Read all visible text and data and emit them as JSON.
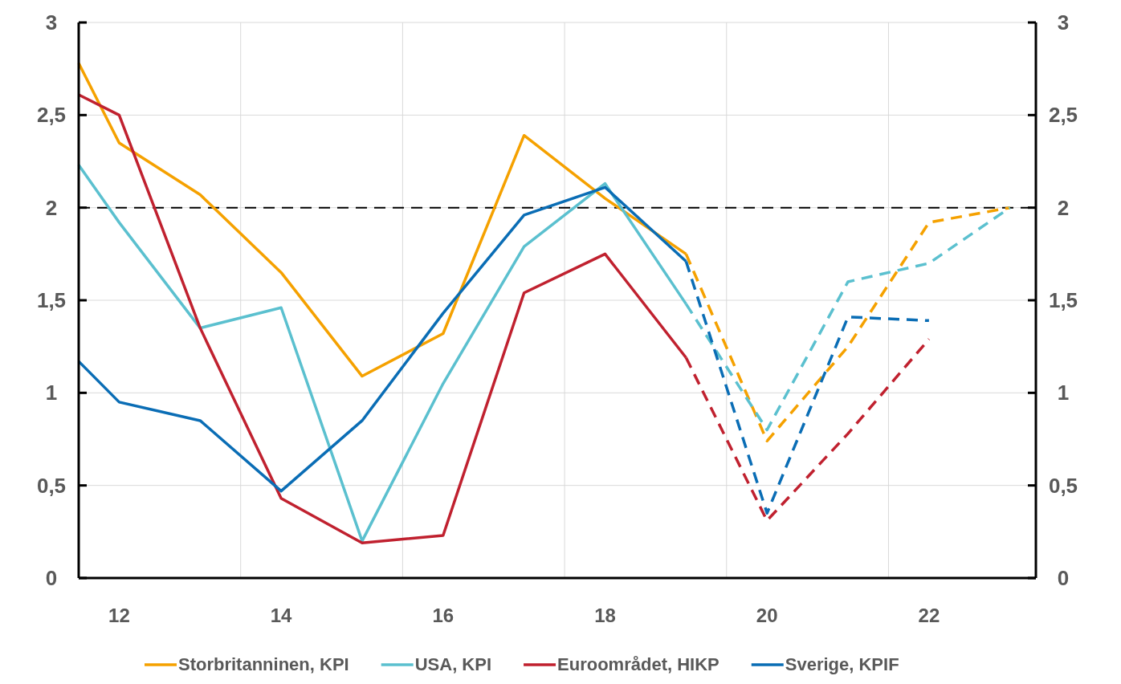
{
  "chart_data": {
    "type": "line",
    "x": [
      11.5,
      12,
      13,
      14,
      15,
      16,
      17,
      18,
      19
    ],
    "xlim": [
      11.5,
      23.32
    ],
    "xticks": [
      12,
      {
        "value": 13.5,
        "label": null
      },
      14,
      {
        "value": 15.5,
        "label": null
      },
      16,
      {
        "value": 17.5,
        "label": null
      },
      18,
      {
        "value": 19.5,
        "label": null
      },
      20,
      {
        "value": 21.5,
        "label": null
      },
      22
    ],
    "ylim": [
      0,
      3
    ],
    "yticks": [
      0,
      {
        "value": 0.5,
        "label": "0,5"
      },
      1,
      {
        "value": 1.5,
        "label": "1,5"
      },
      2,
      {
        "value": 2.5,
        "label": "2,5"
      },
      3
    ],
    "y2lim": [
      0,
      3
    ],
    "y2ticks": [
      0,
      {
        "value": 0.5,
        "label": "0,5"
      },
      1,
      {
        "value": 1.5,
        "label": "1,5"
      },
      2,
      {
        "value": 2.5,
        "label": "2,5"
      },
      3
    ],
    "grid": true,
    "legend": "bottom",
    "line_style": "solid",
    "ref_lines": [
      {
        "axis": "y",
        "value": 2,
        "color": "#000000",
        "line_style": "dashed"
      }
    ],
    "series": [
      {
        "name": "Storbritanninen, KPI",
        "color": "#f5a100",
        "values": [
          2.78,
          2.35,
          2.07,
          1.65,
          1.09,
          1.32,
          2.39,
          2.05,
          1.75
        ]
      },
      {
        "name": "USA, KPI",
        "color": "#5bc0cf",
        "values": [
          2.23,
          1.92,
          1.35,
          1.46,
          0.2,
          1.05,
          1.79,
          2.13,
          1.48
        ]
      },
      {
        "name": "Euroområdet, HIKP",
        "color": "#c0212f",
        "values": [
          2.61,
          2.5,
          1.35,
          0.43,
          0.19,
          0.23,
          1.54,
          1.75,
          1.19
        ]
      },
      {
        "name": "Sverige, KPIF",
        "color": "#0a6db5",
        "values": [
          1.17,
          0.95,
          0.85,
          0.47,
          0.85,
          1.43,
          1.96,
          2.11,
          1.71
        ]
      },
      {
        "color": "#f5a100",
        "line_style": "dashed",
        "x": [
          19,
          20,
          21,
          22,
          23
        ],
        "values": [
          1.75,
          0.74,
          1.25,
          1.92,
          2.0
        ]
      },
      {
        "color": "#5bc0cf",
        "line_style": "dashed",
        "x": [
          19,
          20,
          21,
          22,
          23
        ],
        "values": [
          1.48,
          0.8,
          1.6,
          1.7,
          2.0
        ]
      },
      {
        "color": "#c0212f",
        "line_style": "dashed",
        "x": [
          19,
          20,
          21,
          22
        ],
        "values": [
          1.19,
          0.31,
          0.78,
          1.29
        ]
      },
      {
        "color": "#0a6db5",
        "line_style": "dashed",
        "x": [
          19,
          20,
          21,
          22
        ],
        "values": [
          1.71,
          0.35,
          1.41,
          1.39
        ]
      }
    ]
  }
}
